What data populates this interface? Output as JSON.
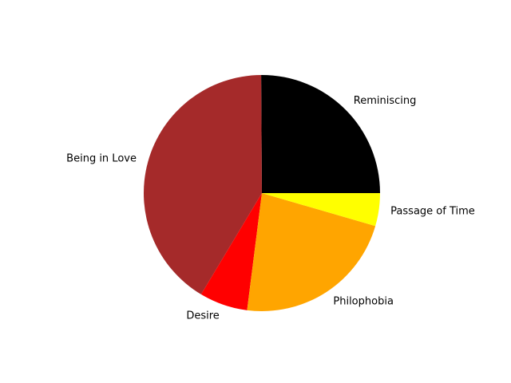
{
  "chart_data": {
    "type": "pie",
    "title": "",
    "start_angle_deg": 0,
    "direction": "counterclockwise",
    "slices": [
      {
        "label": "Reminiscing",
        "value": 25.1,
        "color": "#000000"
      },
      {
        "label": "Being in Love",
        "value": 41.3,
        "color": "#a52a2a"
      },
      {
        "label": "Desire",
        "value": 6.6,
        "color": "#ff0000"
      },
      {
        "label": "Philophobia",
        "value": 22.5,
        "color": "#ffa500"
      },
      {
        "label": "Passage of Time",
        "value": 4.5,
        "color": "#ffff00"
      }
    ]
  }
}
